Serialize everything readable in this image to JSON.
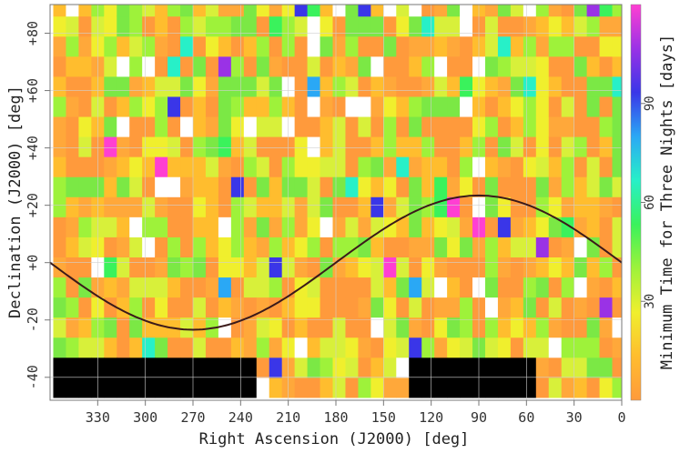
{
  "chart_data": {
    "type": "heatmap",
    "title": "",
    "xlabel": "Right Ascension (J2000) [deg]",
    "ylabel": "Declination (J2000) [deg]",
    "xlim": [
      360,
      0
    ],
    "ylim": [
      -48,
      90
    ],
    "x_ticks": [
      330,
      300,
      270,
      240,
      210,
      180,
      150,
      120,
      90,
      60,
      30,
      0
    ],
    "y_ticks": [
      -40,
      -20,
      0,
      20,
      40,
      60,
      80
    ],
    "x_tick_labels": [
      "330",
      "300",
      "270",
      "240",
      "210",
      "180",
      "150",
      "120",
      "90",
      "60",
      "30",
      "0"
    ],
    "y_tick_labels": [
      "-40",
      "-20",
      "+0",
      "+20",
      "+40",
      "+60",
      "+80"
    ],
    "grid": true,
    "colorbar": {
      "label": "Minimum Time for Three Nights [days]",
      "range": [
        0,
        120
      ],
      "ticks": [
        30,
        60,
        90
      ],
      "tick_labels": [
        "30",
        "60",
        "90"
      ],
      "colormap": [
        "#ff9a3c",
        "#ffbd2e",
        "#f0ef2d",
        "#9ef23a",
        "#3af25c",
        "#27f0c8",
        "#2aa8f5",
        "#3a36e8",
        "#9a32e6",
        "#ff3fd2"
      ]
    },
    "ecliptic": {
      "amplitude_deg": 23.4,
      "color": "#3b1a1a"
    },
    "no_data_color": "#000000"
  }
}
